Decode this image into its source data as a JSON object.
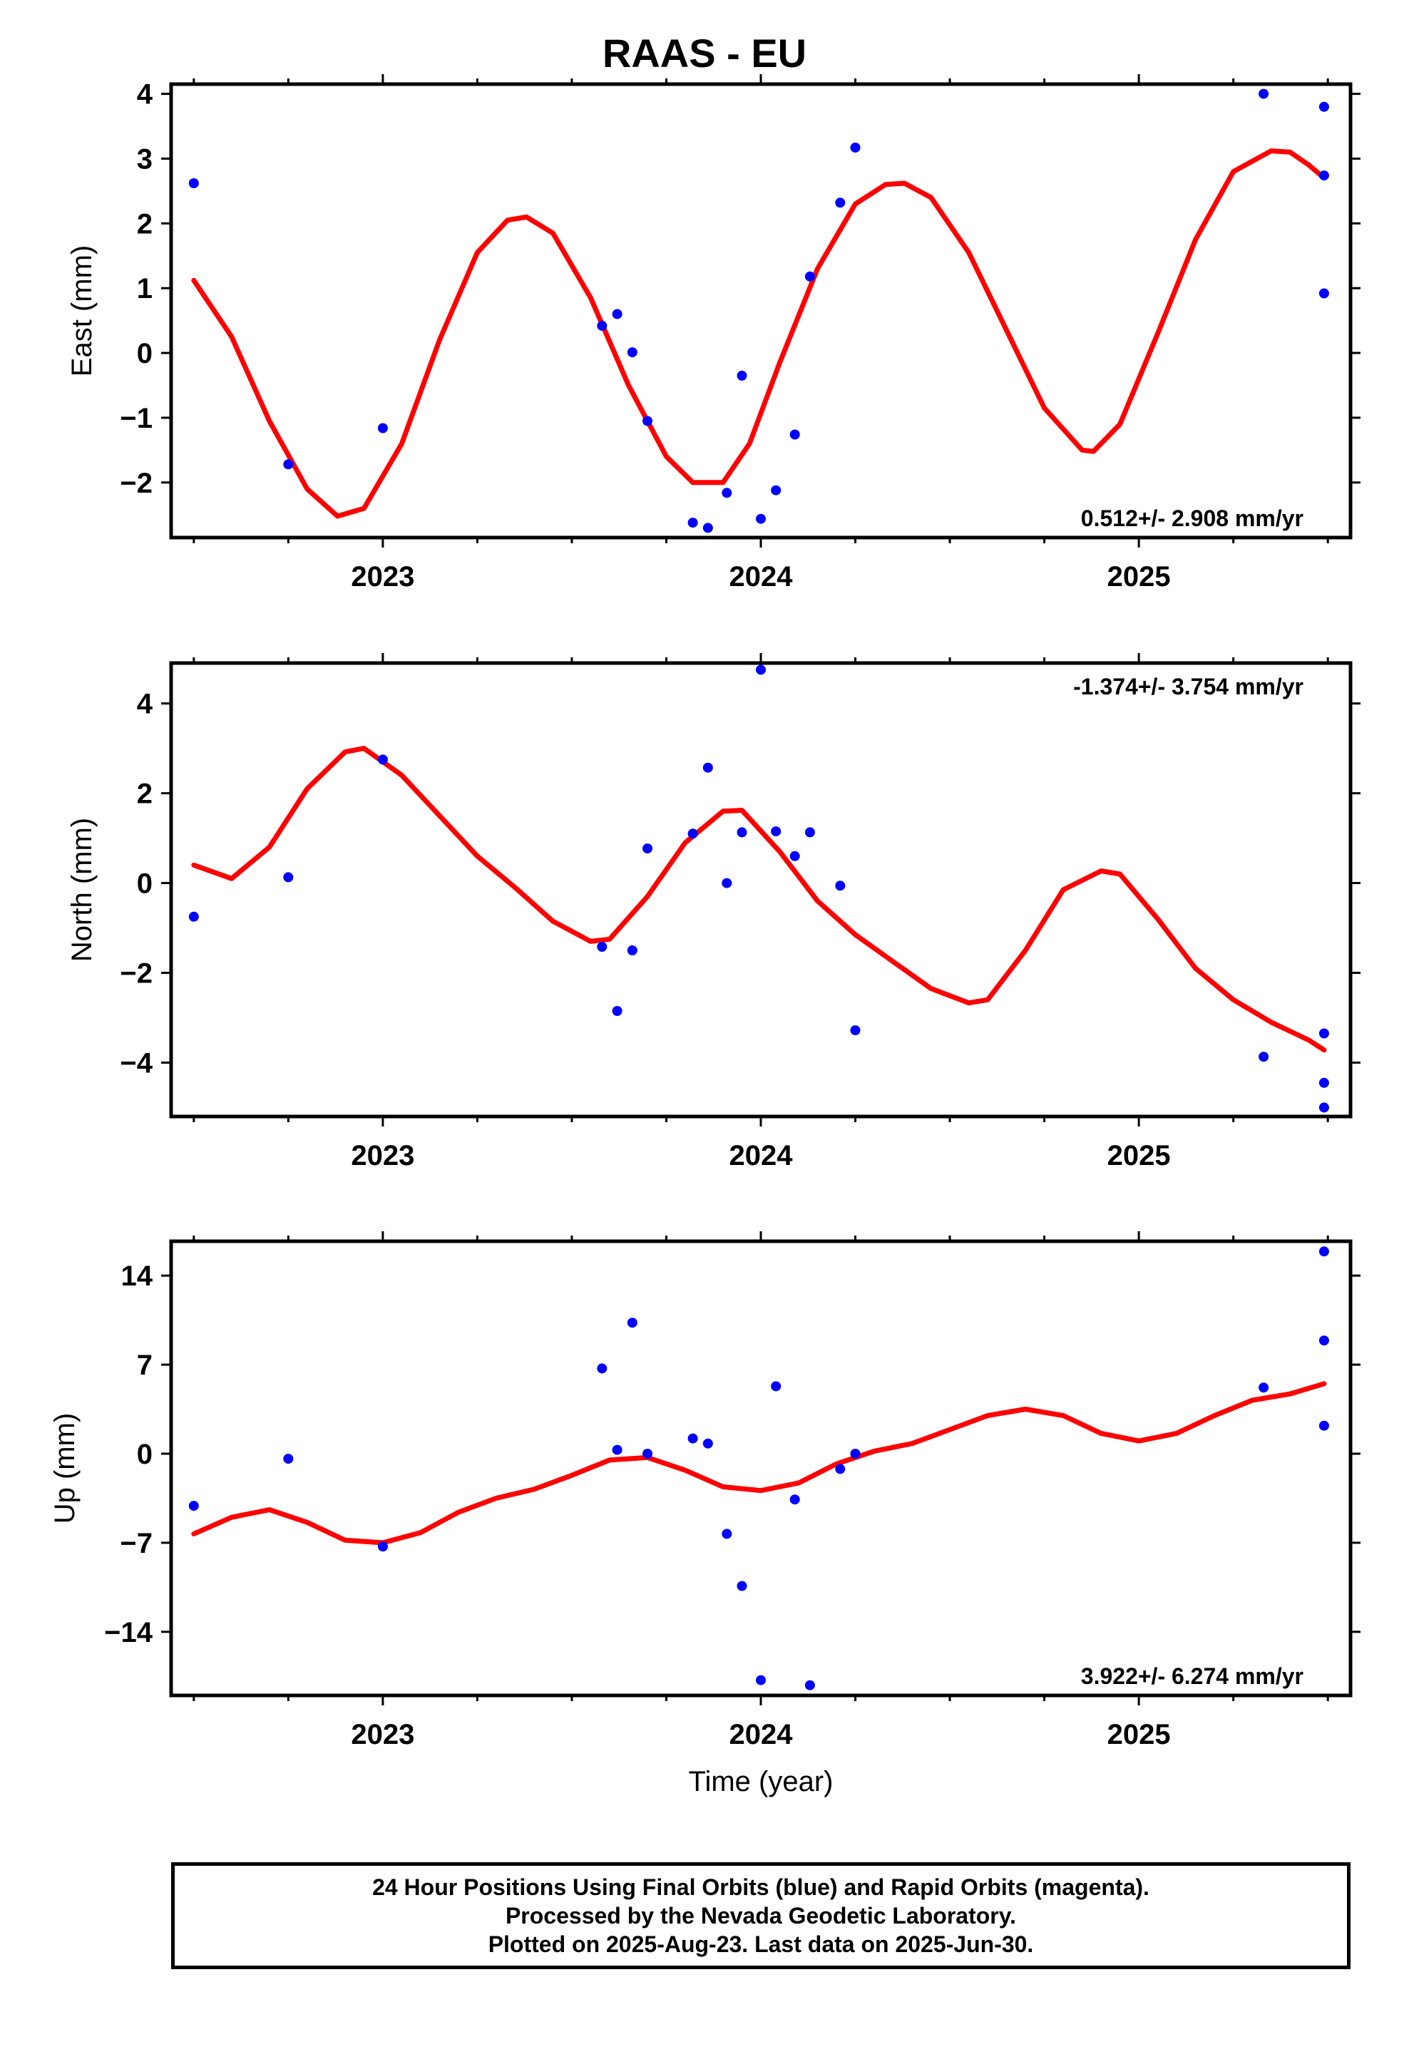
{
  "title": "RAAS - EU",
  "footer": {
    "line1": "24 Hour Positions Using Final Orbits (blue) and Rapid Orbits (magenta).",
    "line2": "Processed by the Nevada Geodetic Laboratory.",
    "line3": "Plotted on 2025-Aug-23. Last data on 2025-Jun-30."
  },
  "colors": {
    "points": "#0000ff",
    "fit": "#ff0000",
    "frame": "#000000"
  },
  "chart_data": [
    {
      "type": "scatter",
      "ylabel": "East (mm)",
      "xlabel": "",
      "rate": "0.512+/- 2.908 mm/yr",
      "rate_position": "bottom-right",
      "xlim": [
        2022.44,
        2025.56
      ],
      "ylim": [
        -2.85,
        4.15
      ],
      "xticks": [
        2023,
        2024,
        2025
      ],
      "xtick_labels": [
        "2023",
        "2024",
        "2025"
      ],
      "yticks": [
        -2,
        -1,
        0,
        1,
        2,
        3,
        4
      ],
      "ytick_labels": [
        "−2",
        "−1",
        "0",
        "1",
        "2",
        "3",
        "4"
      ],
      "series": [
        {
          "kind": "points",
          "x": [
            2022.5,
            2022.75,
            2023.0,
            2023.58,
            2023.62,
            2023.66,
            2023.7,
            2023.82,
            2023.86,
            2023.91,
            2023.95,
            2024.0,
            2024.04,
            2024.09,
            2024.13,
            2024.21,
            2024.25,
            2025.33,
            2025.49,
            2025.49,
            2025.49
          ],
          "y": [
            2.62,
            -1.72,
            -1.16,
            0.42,
            0.6,
            0.01,
            -1.05,
            -2.62,
            -2.7,
            -2.16,
            -0.35,
            -2.56,
            -2.12,
            -1.26,
            1.18,
            2.32,
            3.17,
            4.0,
            3.8,
            2.74,
            0.92
          ]
        },
        {
          "kind": "line",
          "x": [
            2022.5,
            2022.6,
            2022.7,
            2022.8,
            2022.88,
            2022.95,
            2023.05,
            2023.15,
            2023.25,
            2023.33,
            2023.38,
            2023.45,
            2023.55,
            2023.65,
            2023.75,
            2023.82,
            2023.9,
            2023.97,
            2024.05,
            2024.15,
            2024.25,
            2024.33,
            2024.38,
            2024.45,
            2024.55,
            2024.65,
            2024.75,
            2024.85,
            2024.88,
            2024.95,
            2025.05,
            2025.15,
            2025.25,
            2025.35,
            2025.4,
            2025.45,
            2025.49
          ],
          "y": [
            1.12,
            0.25,
            -1.05,
            -2.1,
            -2.52,
            -2.4,
            -1.4,
            0.2,
            1.55,
            2.05,
            2.1,
            1.85,
            0.85,
            -0.5,
            -1.6,
            -2.0,
            -2.0,
            -1.4,
            -0.15,
            1.3,
            2.3,
            2.6,
            2.62,
            2.4,
            1.55,
            0.35,
            -0.85,
            -1.5,
            -1.52,
            -1.1,
            0.3,
            1.75,
            2.8,
            3.12,
            3.1,
            2.9,
            2.7
          ]
        }
      ]
    },
    {
      "type": "scatter",
      "ylabel": "North (mm)",
      "xlabel": "",
      "rate": "-1.374+/- 3.754 mm/yr",
      "rate_position": "top-right",
      "xlim": [
        2022.44,
        2025.56
      ],
      "ylim": [
        -5.2,
        4.9
      ],
      "xticks": [
        2023,
        2024,
        2025
      ],
      "xtick_labels": [
        "2023",
        "2024",
        "2025"
      ],
      "yticks": [
        -4,
        -2,
        0,
        2,
        4
      ],
      "ytick_labels": [
        "−4",
        "−2",
        "0",
        "2",
        "4"
      ],
      "series": [
        {
          "kind": "points",
          "x": [
            2022.5,
            2022.75,
            2023.0,
            2023.58,
            2023.62,
            2023.66,
            2023.7,
            2023.82,
            2023.86,
            2023.91,
            2023.95,
            2024.0,
            2024.04,
            2024.09,
            2024.13,
            2024.21,
            2024.25,
            2025.33,
            2025.49,
            2025.49,
            2025.49
          ],
          "y": [
            -0.75,
            0.13,
            2.75,
            -1.42,
            -2.85,
            -1.5,
            0.77,
            1.1,
            2.57,
            0.0,
            1.13,
            4.75,
            1.15,
            0.6,
            1.13,
            -0.06,
            -3.28,
            -3.87,
            -3.35,
            -4.45,
            -5.0
          ]
        },
        {
          "kind": "line",
          "x": [
            2022.5,
            2022.6,
            2022.7,
            2022.8,
            2022.9,
            2022.95,
            2023.05,
            2023.15,
            2023.25,
            2023.35,
            2023.45,
            2023.55,
            2023.6,
            2023.7,
            2023.8,
            2023.9,
            2023.95,
            2024.05,
            2024.15,
            2024.25,
            2024.35,
            2024.45,
            2024.55,
            2024.6,
            2024.7,
            2024.8,
            2024.9,
            2024.95,
            2025.05,
            2025.15,
            2025.25,
            2025.35,
            2025.45,
            2025.49
          ],
          "y": [
            0.4,
            0.1,
            0.8,
            2.1,
            2.92,
            3.0,
            2.4,
            1.5,
            0.6,
            -0.1,
            -0.85,
            -1.3,
            -1.25,
            -0.3,
            0.9,
            1.6,
            1.62,
            0.7,
            -0.4,
            -1.15,
            -1.75,
            -2.35,
            -2.67,
            -2.6,
            -1.5,
            -0.15,
            0.27,
            0.2,
            -0.8,
            -1.9,
            -2.6,
            -3.1,
            -3.5,
            -3.72
          ]
        }
      ]
    },
    {
      "type": "scatter",
      "ylabel": "Up (mm)",
      "xlabel": "Time (year)",
      "rate": "3.922+/- 6.274 mm/yr",
      "rate_position": "bottom-right",
      "xlim": [
        2022.44,
        2025.56
      ],
      "ylim": [
        -19.0,
        16.7
      ],
      "xticks": [
        2023,
        2024,
        2025
      ],
      "xtick_labels": [
        "2023",
        "2024",
        "2025"
      ],
      "yticks": [
        -14,
        -7,
        0,
        7,
        14
      ],
      "ytick_labels": [
        "−14",
        "−7",
        "0",
        "7",
        "14"
      ],
      "series": [
        {
          "kind": "points",
          "x": [
            2022.5,
            2022.75,
            2023.0,
            2023.58,
            2023.62,
            2023.66,
            2023.7,
            2023.82,
            2023.86,
            2023.91,
            2023.95,
            2024.0,
            2024.04,
            2024.09,
            2024.13,
            2024.21,
            2024.25,
            2025.33,
            2025.49,
            2025.49,
            2025.49
          ],
          "y": [
            -4.1,
            -0.4,
            -7.3,
            6.7,
            0.3,
            10.3,
            0.0,
            1.2,
            0.8,
            -6.3,
            -10.4,
            -17.8,
            5.3,
            -3.6,
            -18.2,
            -1.2,
            0.0,
            5.2,
            15.9,
            8.9,
            2.2
          ]
        },
        {
          "kind": "line",
          "x": [
            2022.5,
            2022.6,
            2022.7,
            2022.8,
            2022.9,
            2023.0,
            2023.1,
            2023.2,
            2023.3,
            2023.4,
            2023.5,
            2023.6,
            2023.7,
            2023.8,
            2023.9,
            2024.0,
            2024.1,
            2024.2,
            2024.3,
            2024.4,
            2024.5,
            2024.6,
            2024.7,
            2024.8,
            2024.9,
            2025.0,
            2025.1,
            2025.2,
            2025.3,
            2025.4,
            2025.49
          ],
          "y": [
            -6.3,
            -5.0,
            -4.4,
            -5.4,
            -6.8,
            -7.0,
            -6.2,
            -4.6,
            -3.5,
            -2.8,
            -1.7,
            -0.5,
            -0.3,
            -1.3,
            -2.6,
            -2.9,
            -2.3,
            -0.8,
            0.2,
            0.8,
            1.9,
            3.0,
            3.5,
            3.0,
            1.6,
            1.0,
            1.6,
            3.0,
            4.2,
            4.7,
            5.5
          ]
        }
      ]
    }
  ]
}
